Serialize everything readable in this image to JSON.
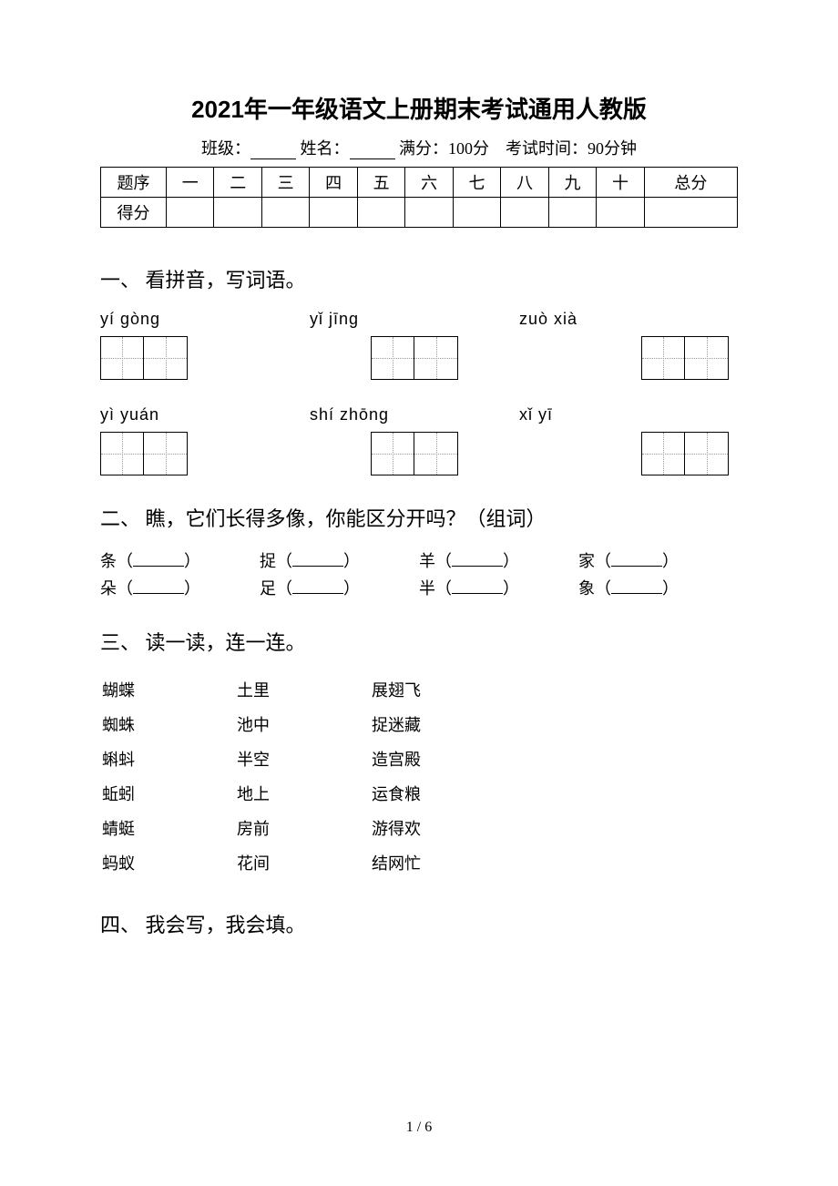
{
  "title": "2021年一年级语文上册期末考试通用人教版",
  "info": {
    "class_label": "班级：",
    "name_label": "姓名：",
    "full_score": "满分：100分",
    "time": "考试时间：90分钟"
  },
  "score_table": {
    "row1_label": "题序",
    "columns": [
      "一",
      "二",
      "三",
      "四",
      "五",
      "六",
      "七",
      "八",
      "九",
      "十",
      "总分"
    ],
    "row2_label": "得分"
  },
  "section1": {
    "heading": "一、 看拼音，写词语。",
    "pinyin_row1": {
      "g1": "yí   gòng",
      "g2": "yǐ   jīng",
      "g3": "zuò   xià"
    },
    "pinyin_row2": {
      "g1": "yì   yuán",
      "g2": "shí  zhōng",
      "g3": "xǐ   yī"
    }
  },
  "section2": {
    "heading": "二、 瞧，它们长得多像，你能区分开吗？（组词）",
    "row1": {
      "c1": "条",
      "c2": "捉",
      "c3": "羊",
      "c4": "家"
    },
    "row2": {
      "c1": "朵",
      "c2": "足",
      "c3": "半",
      "c4": "象"
    }
  },
  "section3": {
    "heading": "三、 读一读，连一连。",
    "rows": [
      {
        "c1": "蝴蝶",
        "c2": "土里",
        "c3": "展翅飞"
      },
      {
        "c1": "蜘蛛",
        "c2": "池中",
        "c3": "捉迷藏"
      },
      {
        "c1": "蝌蚪",
        "c2": "半空",
        "c3": "造宫殿"
      },
      {
        "c1": "蚯蚓",
        "c2": "地上",
        "c3": "运食粮"
      },
      {
        "c1": "蜻蜓",
        "c2": "房前",
        "c3": "游得欢"
      },
      {
        "c1": "蚂蚁",
        "c2": "花间",
        "c3": "结网忙"
      }
    ]
  },
  "section4": {
    "heading": "四、 我会写，我会填。"
  },
  "footer": {
    "page": "1 / 6"
  }
}
